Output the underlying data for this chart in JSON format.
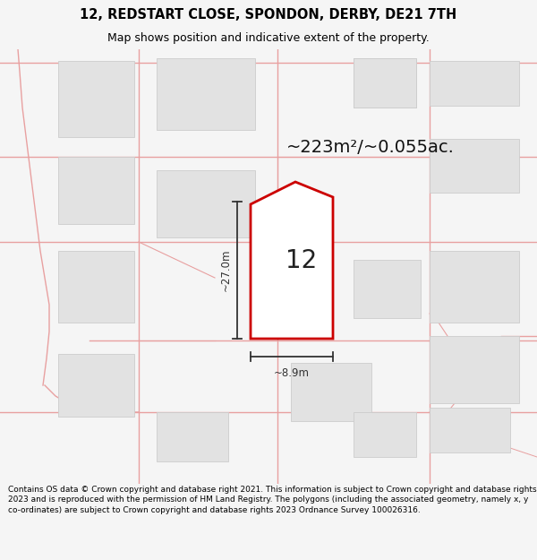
{
  "title": "12, REDSTART CLOSE, SPONDON, DERBY, DE21 7TH",
  "subtitle": "Map shows position and indicative extent of the property.",
  "area_label": "~223m²/~0.055ac.",
  "plot_number": "12",
  "width_label": "~8.9m",
  "height_label": "~27.0m",
  "footer": "Contains OS data © Crown copyright and database right 2021. This information is subject to Crown copyright and database rights 2023 and is reproduced with the permission of HM Land Registry. The polygons (including the associated geometry, namely x, y co-ordinates) are subject to Crown copyright and database rights 2023 Ordnance Survey 100026316.",
  "bg_color": "#f5f5f5",
  "map_bg": "#f2f2f2",
  "plot_fill": "#ffffff",
  "plot_edge": "#cc0000",
  "road_color": "#e8a0a0",
  "building_fill": "#e2e2e2",
  "building_edge": "#cccccc",
  "dim_line_color": "#333333",
  "title_fontsize": 10.5,
  "subtitle_fontsize": 9,
  "area_fontsize": 14,
  "plot_num_fontsize": 20,
  "dim_fontsize": 8.5,
  "footer_fontsize": 6.5
}
